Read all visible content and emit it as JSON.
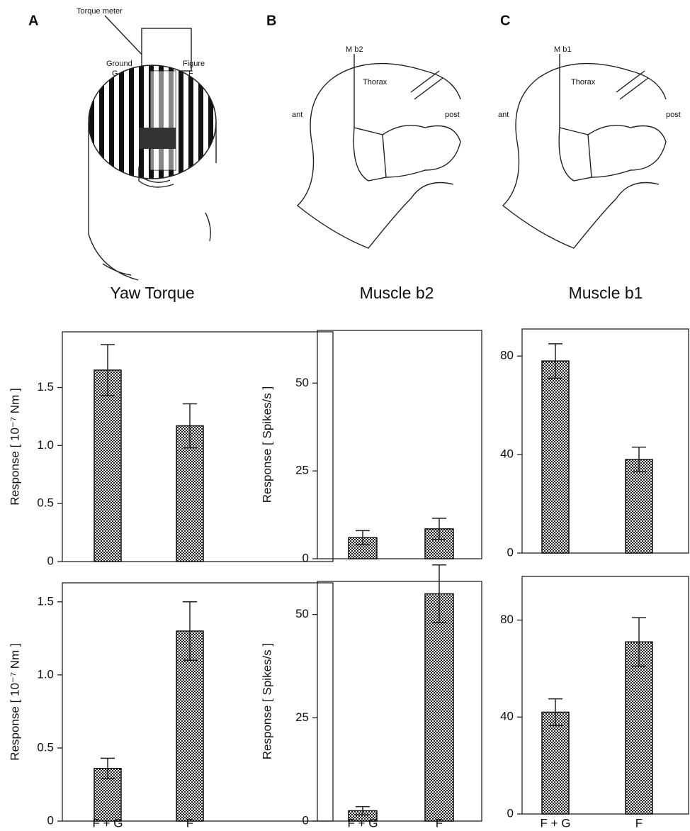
{
  "labels": {
    "panel_a": "A",
    "torque_meter": "Torque meter",
    "ground": "Ground",
    "ground_g": "G",
    "figure": "Figure",
    "figure_f": "F",
    "yaw_torque": "Yaw Torque",
    "panel_b": "B",
    "muscle_b2_tag": "M b2",
    "thorax_b": "Thorax",
    "ant_b": "ant",
    "post_b": "post",
    "muscle_b2": "Muscle b2",
    "panel_c": "C",
    "muscle_b1_tag": "M b1",
    "thorax_c": "Thorax",
    "ant_c": "ant",
    "post_c": "post",
    "muscle_b1": "Muscle b1"
  },
  "chart_data": [
    {
      "type": "bar",
      "y_label": "Response [ 10⁻⁷ Nm ]",
      "categories": [
        null,
        null
      ],
      "values": [
        1.65,
        1.17
      ],
      "errors": [
        0.22,
        0.19
      ],
      "ylim": [
        0,
        1.98
      ],
      "yticks": [
        0,
        0.5,
        {
          "value": 1,
          "label": "1.0"
        },
        1.5
      ]
    },
    {
      "type": "bar",
      "y_label": "Response [ 10⁻⁷ Nm ]",
      "categories": [
        "F + G",
        "F"
      ],
      "values": [
        0.36,
        1.3
      ],
      "errors": [
        0.07,
        0.2
      ],
      "ylim": [
        0,
        1.63
      ],
      "yticks": [
        0,
        0.5,
        {
          "value": 1,
          "label": "1.0"
        },
        1.5
      ]
    },
    {
      "type": "bar",
      "y_label": "Response [ Spikes/s ]",
      "categories": [
        null,
        null
      ],
      "values": [
        6,
        8.5
      ],
      "errors": [
        2,
        3
      ],
      "ylim": [
        0,
        65
      ],
      "yticks": [
        0,
        25,
        50
      ]
    },
    {
      "type": "bar",
      "y_label": "Response [ Spikes/s ]",
      "categories": [
        "F + G",
        "F"
      ],
      "values": [
        2.5,
        55
      ],
      "errors": [
        1,
        7
      ],
      "ylim": [
        0,
        58
      ],
      "yticks": [
        0,
        25,
        50
      ]
    },
    {
      "type": "bar",
      "categories": [
        null,
        null
      ],
      "values": [
        78,
        38
      ],
      "errors": [
        7,
        5
      ],
      "ylim": [
        0,
        91
      ],
      "yticks": [
        0,
        40,
        80
      ]
    },
    {
      "type": "bar",
      "categories": [
        "F + G",
        "F"
      ],
      "values": [
        42,
        71
      ],
      "errors": [
        5.5,
        10
      ],
      "ylim": [
        0,
        98
      ],
      "yticks": [
        0,
        40,
        80
      ]
    }
  ]
}
